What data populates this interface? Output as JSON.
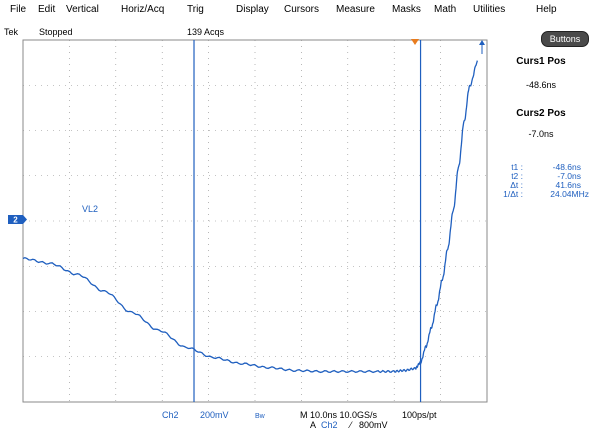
{
  "menu": {
    "file": "File",
    "edit": "Edit",
    "vertical": "Vertical",
    "horiz": "Horiz/Acq",
    "trig": "Trig",
    "display": "Display",
    "cursors": "Cursors",
    "measure": "Measure",
    "masks": "Masks",
    "math": "Math",
    "utilities": "Utilities",
    "help": "Help"
  },
  "status": {
    "brand": "Tek",
    "state": "Stopped",
    "acqs": "139 Acqs"
  },
  "buttons_label": "Buttons",
  "cursor_panel": {
    "curs1_label": "Curs1 Pos",
    "curs1_value": "-48.6ns",
    "curs2_label": "Curs2 Pos",
    "curs2_value": "-7.0ns"
  },
  "readout": [
    {
      "key": "t1 :",
      "value": "-48.6ns"
    },
    {
      "key": "t2 :",
      "value": "-7.0ns"
    },
    {
      "key": "Δt :",
      "value": "41.6ns"
    },
    {
      "key": "1/Δt :",
      "value": "24.04MHz"
    }
  ],
  "channel_marker": "2",
  "waveform_label": "VL2",
  "bottom": {
    "channel": "Ch2",
    "volts": "200mV",
    "bw": "Bw",
    "timebase": "M 10.0ns 10.0GS/s",
    "resolution": "100ps/pt",
    "trigger_prefix": "A",
    "trigger_channel": "Ch2",
    "trigger_slope": "⁄",
    "trigger_level": "800mV"
  },
  "colors": {
    "waveform": "#1f5fbf",
    "cursor": "#1f5fbf",
    "trigger_marker": "#e87c1e",
    "grid": "#8a8a8a"
  },
  "chart_data": {
    "type": "line",
    "title": "",
    "xlabel": "",
    "ylabel": "",
    "grid": true,
    "x_unit": "ns",
    "x": [
      -80,
      -75,
      -70,
      -65,
      -60,
      -55,
      -50,
      -45,
      -40,
      -35,
      -30,
      -25,
      -20,
      -15,
      -12,
      -10,
      -8,
      -7,
      -6,
      -5,
      -4,
      -3,
      -2,
      -1,
      0,
      1,
      2,
      3.5
    ],
    "series": [
      {
        "name": "",
        "y": [
          0.36,
          0.26,
          0.04,
          -0.3,
          -0.72,
          -1.08,
          -1.42,
          -1.62,
          -1.74,
          -1.82,
          -1.88,
          -1.9,
          -1.9,
          -1.9,
          -1.9,
          -1.88,
          -1.84,
          -1.72,
          -1.4,
          -1.02,
          -0.56,
          -0.06,
          0.56,
          1.32,
          2.2,
          3.1,
          3.8,
          4.3
        ]
      }
    ],
    "cursors_ns": [
      -48.6,
      -7.0
    ]
  }
}
